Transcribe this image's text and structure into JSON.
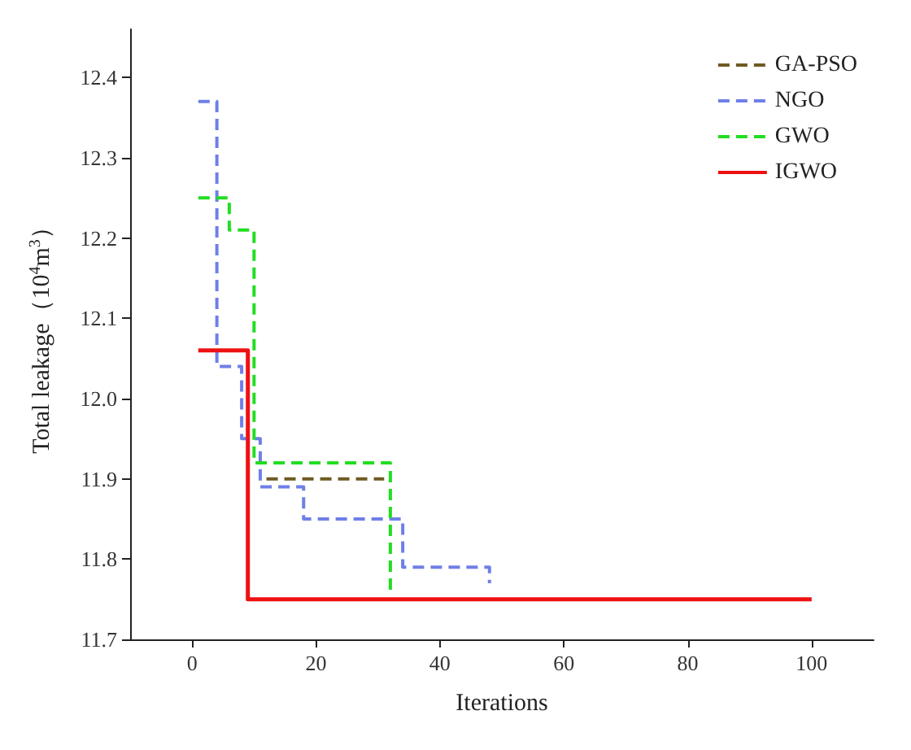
{
  "chart_data": {
    "type": "line",
    "xlabel": "Iterations",
    "ylabel": "Total leakage（10$^{4}$m$^{3}$）",
    "xlim": [
      -10,
      110
    ],
    "ylim": [
      11.7,
      12.46
    ],
    "xticks": [
      0,
      20,
      40,
      60,
      80,
      100
    ],
    "yticks": [
      11.7,
      11.8,
      11.9,
      {
        "value": 12,
        "label": "12.0"
      },
      12.1,
      12.2,
      12.3,
      12.4
    ],
    "grid": false,
    "legend": "top right",
    "marker": "none",
    "series": [
      {
        "name": "GA-PSO",
        "color": "#6e5a24",
        "line_style": "dashed",
        "x": [
          12,
          31
        ],
        "values": [
          11.9,
          11.9
        ]
      },
      {
        "name": "NGO",
        "color": "#6f7fe8",
        "line_style": "dashed",
        "x": [
          1,
          4,
          4,
          8,
          8,
          11,
          11,
          18,
          18,
          34,
          34,
          48,
          48
        ],
        "values": [
          12.37,
          12.37,
          12.04,
          12.04,
          11.95,
          11.95,
          11.89,
          11.89,
          11.85,
          11.85,
          11.79,
          11.79,
          11.77
        ]
      },
      {
        "name": "GWO",
        "color": "#22dd22",
        "line_style": "dashed",
        "x": [
          1,
          6,
          6,
          10,
          10,
          32,
          32
        ],
        "values": [
          12.25,
          12.25,
          12.21,
          12.21,
          11.92,
          11.92,
          11.76
        ]
      },
      {
        "name": "IGWO",
        "color": "#ee1111",
        "line_style": "solid",
        "x": [
          1,
          9,
          9,
          100
        ],
        "values": [
          12.06,
          12.06,
          11.75,
          11.75
        ]
      }
    ]
  }
}
